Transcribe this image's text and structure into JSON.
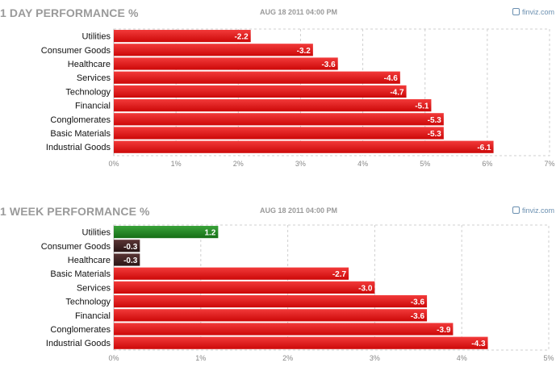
{
  "chart_data": [
    {
      "type": "bar",
      "orientation": "horizontal",
      "title": "1 DAY PERFORMANCE %",
      "date": "AUG 18 2011 04:00 PM",
      "brand": "finviz.com",
      "categories": [
        "Utilities",
        "Consumer Goods",
        "Healthcare",
        "Services",
        "Technology",
        "Financial",
        "Conglomerates",
        "Basic Materials",
        "Industrial Goods"
      ],
      "values": [
        -2.2,
        -3.2,
        -3.6,
        -4.6,
        -4.7,
        -5.1,
        -5.3,
        -5.3,
        -6.1
      ],
      "value_labels": [
        "-2.2",
        "-3.2",
        "-3.6",
        "-4.6",
        "-4.7",
        "-5.1",
        "-5.3",
        "-5.3",
        "-6.1"
      ],
      "xlim": [
        0,
        7
      ],
      "xticks": [
        "0%",
        "1%",
        "2%",
        "3%",
        "4%",
        "5%",
        "6%",
        "7%"
      ],
      "grid": true,
      "colors": {
        "negative": "#e01515",
        "positive": "#1f8a1f",
        "small_negative": "#3a2020"
      }
    },
    {
      "type": "bar",
      "orientation": "horizontal",
      "title": "1 WEEK PERFORMANCE %",
      "date": "AUG 18 2011 04:00 PM",
      "brand": "finviz.com",
      "categories": [
        "Utilities",
        "Consumer Goods",
        "Healthcare",
        "Basic Materials",
        "Services",
        "Technology",
        "Financial",
        "Conglomerates",
        "Industrial Goods"
      ],
      "values": [
        1.2,
        -0.3,
        -0.3,
        -2.7,
        -3.0,
        -3.6,
        -3.6,
        -3.9,
        -4.3
      ],
      "value_labels": [
        "1.2",
        "-0.3",
        "-0.3",
        "-2.7",
        "-3.0",
        "-3.6",
        "-3.6",
        "-3.9",
        "-4.3"
      ],
      "xlim": [
        0,
        5
      ],
      "xticks": [
        "0%",
        "1%",
        "2%",
        "3%",
        "4%",
        "5%"
      ],
      "grid": true,
      "colors": {
        "negative": "#e01515",
        "positive": "#1f8a1f",
        "small_negative": "#3a2020"
      }
    }
  ]
}
